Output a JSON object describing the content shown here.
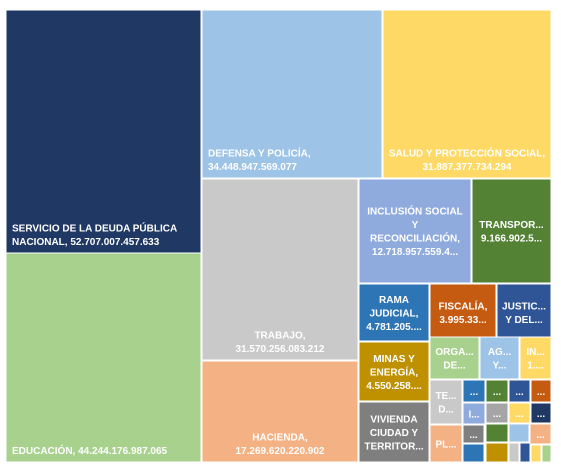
{
  "chart_data": {
    "type": "treemap",
    "title": "",
    "items": [
      {
        "label_lines": [
          "SERVICIO DE LA DEUDA PÚBLICA",
          "NACIONAL, 52.707.007.457.633"
        ],
        "value": 52707007457633,
        "color": "#203864",
        "label_pos": "bottom-left"
      },
      {
        "label_lines": [
          "EDUCACIÓN, 44.244.176.987.065"
        ],
        "value": 44244176987065,
        "color": "#a9d18e",
        "label_pos": "bottom-left"
      },
      {
        "label_lines": [
          "DEFENSA Y POLICÍA,",
          "34.448.947.569.077"
        ],
        "value": 34448947569077,
        "color": "#9dc3e6",
        "label_pos": "bottom-left"
      },
      {
        "label_lines": [
          "SALUD Y PROTECCIÓN SOCIAL,",
          "31.887.377.734.294"
        ],
        "value": 31887377734294,
        "color": "#ffd966",
        "label_pos": "bottom-center"
      },
      {
        "label_lines": [
          "TRABAJO,",
          "31.570.256.083.212"
        ],
        "value": 31570256083212,
        "color": "#c9c9c9",
        "label_pos": "bottom-center"
      },
      {
        "label_lines": [
          "HACIENDA,",
          "17.269.620.220.902"
        ],
        "value": 17269620220902,
        "color": "#f4b183",
        "label_pos": "bottom-center"
      },
      {
        "label_lines": [
          "INCLUSIÓN SOCIAL",
          "Y",
          "RECONCILIACIÓN,",
          "12.718.957.559.4..."
        ],
        "value": 12718957559400,
        "color": "#8faadc",
        "label_pos": "center"
      },
      {
        "label_lines": [
          "TRANSPOR...",
          "9.166.902.5..."
        ],
        "value": 9166902500000,
        "color": "#548235",
        "label_pos": "center"
      },
      {
        "label_lines": [
          "RAMA",
          "JUDICIAL,",
          "4.781.205...."
        ],
        "value": 4781205000000,
        "color": "#2e75b6",
        "label_pos": "center"
      },
      {
        "label_lines": [
          "FISCALÍA,",
          "3.995.33..."
        ],
        "value": 3995330000000,
        "color": "#c55a11",
        "label_pos": "center"
      },
      {
        "label_lines": [
          "JUSTIC...",
          "Y DEL..."
        ],
        "value": 3600000000000,
        "color": "#2f5597",
        "label_pos": "center"
      },
      {
        "label_lines": [
          "MINAS Y",
          "ENERGÍA,",
          "4.550.258...."
        ],
        "value": 4550258000000,
        "color": "#bf9000",
        "label_pos": "center"
      },
      {
        "label_lines": [
          "ORGA...",
          "DE..."
        ],
        "value": 2100000000000,
        "color": "#a9d18e",
        "label_pos": "center"
      },
      {
        "label_lines": [
          "AG...",
          "Y..."
        ],
        "value": 1500000000000,
        "color": "#9dc3e6",
        "label_pos": "center"
      },
      {
        "label_lines": [
          "IN...",
          "1...."
        ],
        "value": 1200000000000,
        "color": "#ffd966",
        "label_pos": "center"
      },
      {
        "label_lines": [
          "VIVIENDA",
          "CIUDAD Y",
          "TERRITOR..."
        ],
        "value": 3400000000000,
        "color": "#7f7f7f",
        "label_pos": "center"
      },
      {
        "label_lines": [
          "TE...",
          "D..."
        ],
        "value": 1100000000000,
        "color": "#c9c9c9",
        "label_pos": "center"
      },
      {
        "label_lines": [
          "..."
        ],
        "value": 500000000000,
        "color": "#2e75b6",
        "label_pos": "center"
      },
      {
        "label_lines": [
          "I..."
        ],
        "value": 600000000000,
        "color": "#8faadc",
        "label_pos": "center"
      },
      {
        "label_lines": [
          "PL..."
        ],
        "value": 700000000000,
        "color": "#f4b183",
        "label_pos": "center"
      },
      {
        "label_lines": [
          "..."
        ],
        "value": 350000000000,
        "color": "#548235",
        "label_pos": "center"
      },
      {
        "label_lines": [
          "..."
        ],
        "value": 300000000000,
        "color": "#2f5597",
        "label_pos": "center"
      },
      {
        "label_lines": [
          "..."
        ],
        "value": 300000000000,
        "color": "#c55a11",
        "label_pos": "center"
      },
      {
        "label_lines": [
          "..."
        ],
        "value": 250000000000,
        "color": "#7f7f7f",
        "label_pos": "center"
      },
      {
        "label_lines": [
          "..."
        ],
        "value": 300000000000,
        "color": "#a5a5a5",
        "label_pos": "center"
      },
      {
        "label_lines": [
          "..."
        ],
        "value": 250000000000,
        "color": "#ffd966",
        "label_pos": "center"
      },
      {
        "label_lines": [
          "..."
        ],
        "value": 250000000000,
        "color": "#203864",
        "label_pos": "center"
      },
      {
        "label_lines": [],
        "value": 200000000000,
        "color": "#2e75b6",
        "label_pos": "center"
      },
      {
        "label_lines": [],
        "value": 200000000000,
        "color": "#548235",
        "label_pos": "center"
      },
      {
        "label_lines": [],
        "value": 200000000000,
        "color": "#9dc3e6",
        "label_pos": "center"
      },
      {
        "label_lines": [
          "..."
        ],
        "value": 180000000000,
        "color": "#f4b183",
        "label_pos": "center"
      },
      {
        "label_lines": [],
        "value": 150000000000,
        "color": "#bf9000",
        "label_pos": "center"
      },
      {
        "label_lines": [],
        "value": 150000000000,
        "color": "#c9c9c9",
        "label_pos": "center"
      },
      {
        "label_lines": [],
        "value": 150000000000,
        "color": "#2f5597",
        "label_pos": "center"
      },
      {
        "label_lines": [],
        "value": 120000000000,
        "color": "#ffd966",
        "label_pos": "center"
      },
      {
        "label_lines": [],
        "value": 120000000000,
        "color": "#a9d18e",
        "label_pos": "center"
      },
      {
        "label_lines": [],
        "value": 100000000000,
        "color": "#7f7f7f",
        "label_pos": "center"
      }
    ]
  }
}
